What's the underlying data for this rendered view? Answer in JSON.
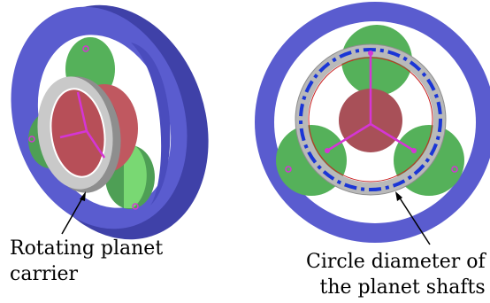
{
  "captions": {
    "left": {
      "line1": "Rotating planet",
      "line2": "carrier"
    },
    "right": {
      "line1": "Circle diameter of",
      "line2": "the planet shafts"
    }
  },
  "colors": {
    "ring_gear": "#5a5ccf",
    "ring_gear_dark": "#3f41a8",
    "planet_gear": "#55b15a",
    "planet_gear_light": "#79d873",
    "sun_gear": "#a85058",
    "carrier": "#b9b9b9",
    "carrier_dark": "#8e8e8e",
    "arm": "#d535d5",
    "shaft_circle": "#1a36d6",
    "pin_outline": "#cc2222"
  }
}
